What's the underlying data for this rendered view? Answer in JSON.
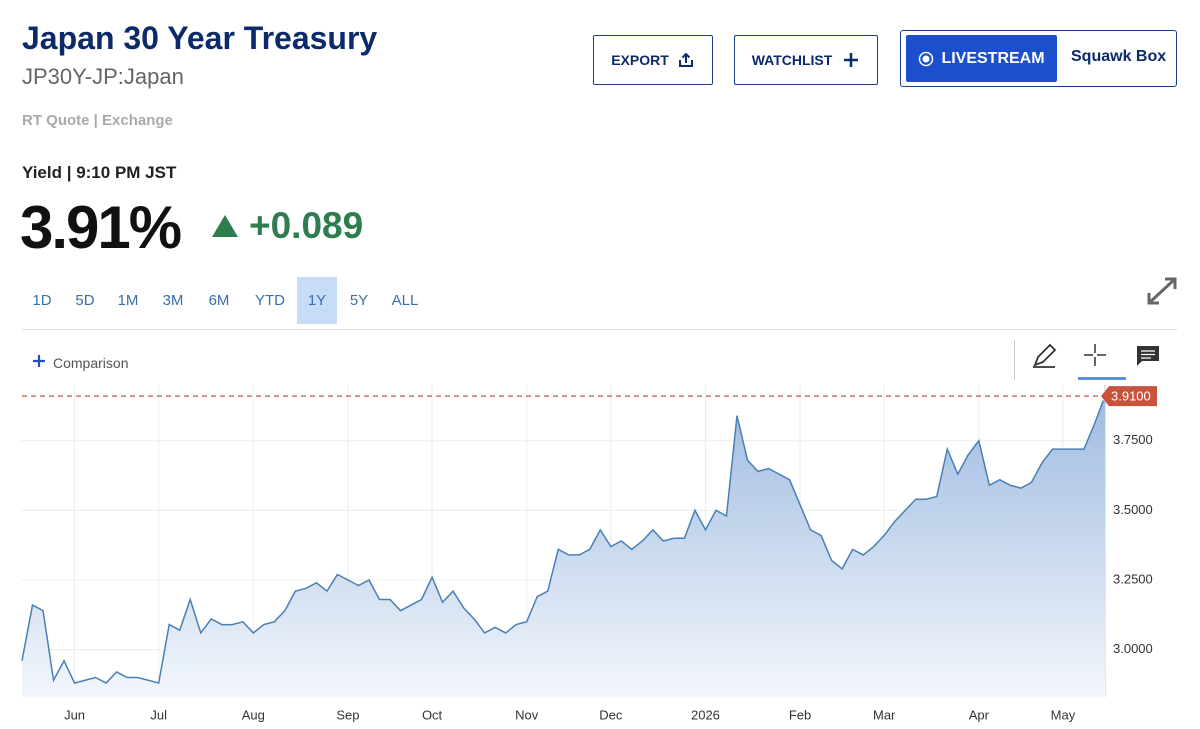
{
  "header": {
    "title": "Japan 30 Year Treasury",
    "symbol": "JP30Y-JP:Japan",
    "quote_source": "RT Quote | Exchange"
  },
  "buttons": {
    "export": "EXPORT",
    "watchlist": "WATCHLIST",
    "livestream": "LIVESTREAM",
    "squawk": "Squawk Box"
  },
  "quote": {
    "label": "Yield | 9:10 PM JST",
    "last": "3.91%",
    "change": "+0.089"
  },
  "ranges": [
    "1D",
    "5D",
    "1M",
    "3M",
    "6M",
    "YTD",
    "1Y",
    "5Y",
    "ALL"
  ],
  "active_range": "1Y",
  "comparison": "Comparison",
  "chart_data": {
    "type": "line",
    "series": [
      {
        "color": "#4a7fb5",
        "values": [
          2.96,
          3.16,
          3.14,
          2.89,
          2.96,
          2.88,
          2.89,
          2.9,
          2.88,
          2.92,
          2.9,
          2.9,
          2.89,
          2.88,
          3.09,
          3.07,
          3.18,
          3.06,
          3.11,
          3.09,
          3.09,
          3.1,
          3.06,
          3.09,
          3.1,
          3.14,
          3.21,
          3.22,
          3.24,
          3.21,
          3.27,
          3.25,
          3.23,
          3.25,
          3.18,
          3.18,
          3.14,
          3.16,
          3.18,
          3.26,
          3.17,
          3.21,
          3.15,
          3.11,
          3.06,
          3.08,
          3.06,
          3.09,
          3.1,
          3.19,
          3.21,
          3.36,
          3.34,
          3.34,
          3.36,
          3.43,
          3.37,
          3.39,
          3.36,
          3.39,
          3.43,
          3.39,
          3.4,
          3.4,
          3.5,
          3.43,
          3.5,
          3.48,
          3.84,
          3.68,
          3.64,
          3.65,
          3.63,
          3.61,
          3.52,
          3.43,
          3.41,
          3.32,
          3.29,
          3.36,
          3.34,
          3.37,
          3.41,
          3.46,
          3.5,
          3.54,
          3.54,
          3.55,
          3.72,
          3.63,
          3.7,
          3.75,
          3.59,
          3.61,
          3.59,
          3.58,
          3.6,
          3.67,
          3.72,
          3.72,
          3.72,
          3.72,
          3.81,
          3.91
        ]
      }
    ],
    "xlim": [
      0,
      103
    ],
    "xticks": [
      {
        "value": 5,
        "label": "Jun"
      },
      {
        "value": 13,
        "label": "Jul"
      },
      {
        "value": 22,
        "label": "Aug"
      },
      {
        "value": 31,
        "label": "Sep"
      },
      {
        "value": 39,
        "label": "Oct"
      },
      {
        "value": 48,
        "label": "Nov"
      },
      {
        "value": 56,
        "label": "Dec"
      },
      {
        "value": 65,
        "label": "2026"
      },
      {
        "value": 74,
        "label": "Feb"
      },
      {
        "value": 82,
        "label": "Mar"
      },
      {
        "value": 91,
        "label": "Apr"
      },
      {
        "value": 99,
        "label": "May"
      }
    ],
    "ylim": [
      2.83,
      3.95
    ],
    "yticks": [
      {
        "value": 3,
        "label": "3.0000"
      },
      {
        "value": 3.25,
        "label": "3.2500"
      },
      {
        "value": 3.5,
        "label": "3.5000"
      },
      {
        "value": 3.75,
        "label": "3.7500"
      }
    ],
    "grid": true,
    "reference_line": {
      "value": 3.91,
      "label": "3.9100",
      "color": "#c8533c"
    }
  }
}
